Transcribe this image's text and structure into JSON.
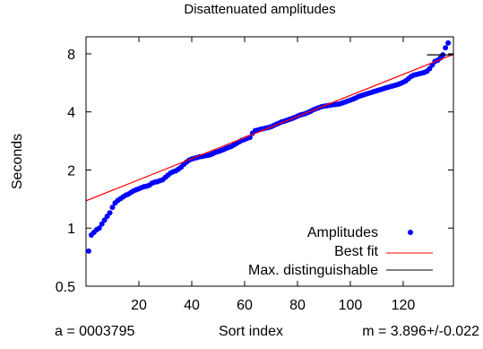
{
  "chart_data": {
    "type": "scatter",
    "title": "Disattenuated amplitudes",
    "xlabel": "Sort index",
    "ylabel": "Seconds",
    "xlim": [
      0,
      139
    ],
    "ylim": [
      0.5,
      9.8
    ],
    "y_scale": "log",
    "x_ticks": [
      20,
      40,
      60,
      80,
      100,
      120
    ],
    "y_ticks": [
      {
        "value": 0.5,
        "label": "0.5"
      },
      {
        "value": 1,
        "label": "1"
      },
      {
        "value": 2,
        "label": "2"
      },
      {
        "value": 4,
        "label": "4"
      },
      {
        "value": 8,
        "label": "8"
      }
    ],
    "series": [
      {
        "name": "Amplitudes",
        "kind": "points",
        "color": "#0000ff",
        "x": [
          1,
          2,
          3,
          4,
          5,
          6,
          7,
          8,
          9,
          10,
          11,
          12,
          13,
          14,
          15,
          16,
          17,
          18,
          19,
          20,
          21,
          22,
          23,
          24,
          25,
          26,
          27,
          28,
          29,
          30,
          31,
          32,
          33,
          34,
          35,
          36,
          37,
          38,
          39,
          40,
          41,
          42,
          43,
          44,
          45,
          46,
          47,
          48,
          49,
          50,
          51,
          52,
          53,
          54,
          55,
          56,
          57,
          58,
          59,
          60,
          61,
          62,
          63,
          64,
          65,
          66,
          67,
          68,
          69,
          70,
          71,
          72,
          73,
          74,
          75,
          76,
          77,
          78,
          79,
          80,
          81,
          82,
          83,
          84,
          85,
          86,
          87,
          88,
          89,
          90,
          91,
          92,
          93,
          94,
          95,
          96,
          97,
          98,
          99,
          100,
          101,
          102,
          103,
          104,
          105,
          106,
          107,
          108,
          109,
          110,
          111,
          112,
          113,
          114,
          115,
          116,
          117,
          118,
          119,
          120,
          121,
          122,
          123,
          124,
          125,
          126,
          127,
          128,
          129,
          130,
          131,
          132,
          133,
          134,
          135,
          136,
          137
        ],
        "y": [
          0.76,
          0.92,
          0.95,
          0.98,
          1.0,
          1.05,
          1.1,
          1.15,
          1.2,
          1.28,
          1.35,
          1.39,
          1.42,
          1.45,
          1.48,
          1.5,
          1.53,
          1.56,
          1.58,
          1.6,
          1.62,
          1.64,
          1.65,
          1.67,
          1.71,
          1.73,
          1.74,
          1.76,
          1.78,
          1.83,
          1.88,
          1.93,
          1.96,
          1.98,
          2.02,
          2.07,
          2.14,
          2.2,
          2.25,
          2.28,
          2.3,
          2.32,
          2.34,
          2.35,
          2.37,
          2.38,
          2.4,
          2.43,
          2.47,
          2.49,
          2.52,
          2.55,
          2.59,
          2.62,
          2.65,
          2.7,
          2.75,
          2.8,
          2.85,
          2.88,
          2.92,
          2.95,
          3.1,
          3.2,
          3.22,
          3.25,
          3.27,
          3.3,
          3.32,
          3.35,
          3.4,
          3.45,
          3.5,
          3.55,
          3.58,
          3.62,
          3.66,
          3.7,
          3.75,
          3.8,
          3.85,
          3.89,
          3.92,
          3.97,
          4.03,
          4.1,
          4.15,
          4.2,
          4.25,
          4.28,
          4.3,
          4.32,
          4.35,
          4.36,
          4.38,
          4.4,
          4.45,
          4.5,
          4.55,
          4.6,
          4.66,
          4.72,
          4.8,
          4.85,
          4.9,
          4.95,
          5.0,
          5.05,
          5.1,
          5.15,
          5.2,
          5.25,
          5.3,
          5.35,
          5.4,
          5.45,
          5.5,
          5.55,
          5.62,
          5.7,
          5.8,
          5.95,
          6.1,
          6.2,
          6.25,
          6.3,
          6.35,
          6.4,
          6.5,
          6.7,
          7.0,
          7.3,
          7.4,
          7.6,
          7.9,
          8.6,
          9.1
        ]
      },
      {
        "name": "Best fit",
        "kind": "line",
        "color": "#ff0000",
        "x": [
          0,
          139
        ],
        "y": [
          1.385,
          7.95
        ]
      },
      {
        "name": "Max. distinguishable",
        "kind": "line",
        "color": "#000000",
        "x": [
          129,
          139
        ],
        "y": [
          7.9,
          7.9
        ]
      }
    ],
    "legend_position": "bottom-right",
    "grid": false
  },
  "footer": {
    "left": "a = 0003795",
    "right": "m = 3.896+/-0.022"
  }
}
